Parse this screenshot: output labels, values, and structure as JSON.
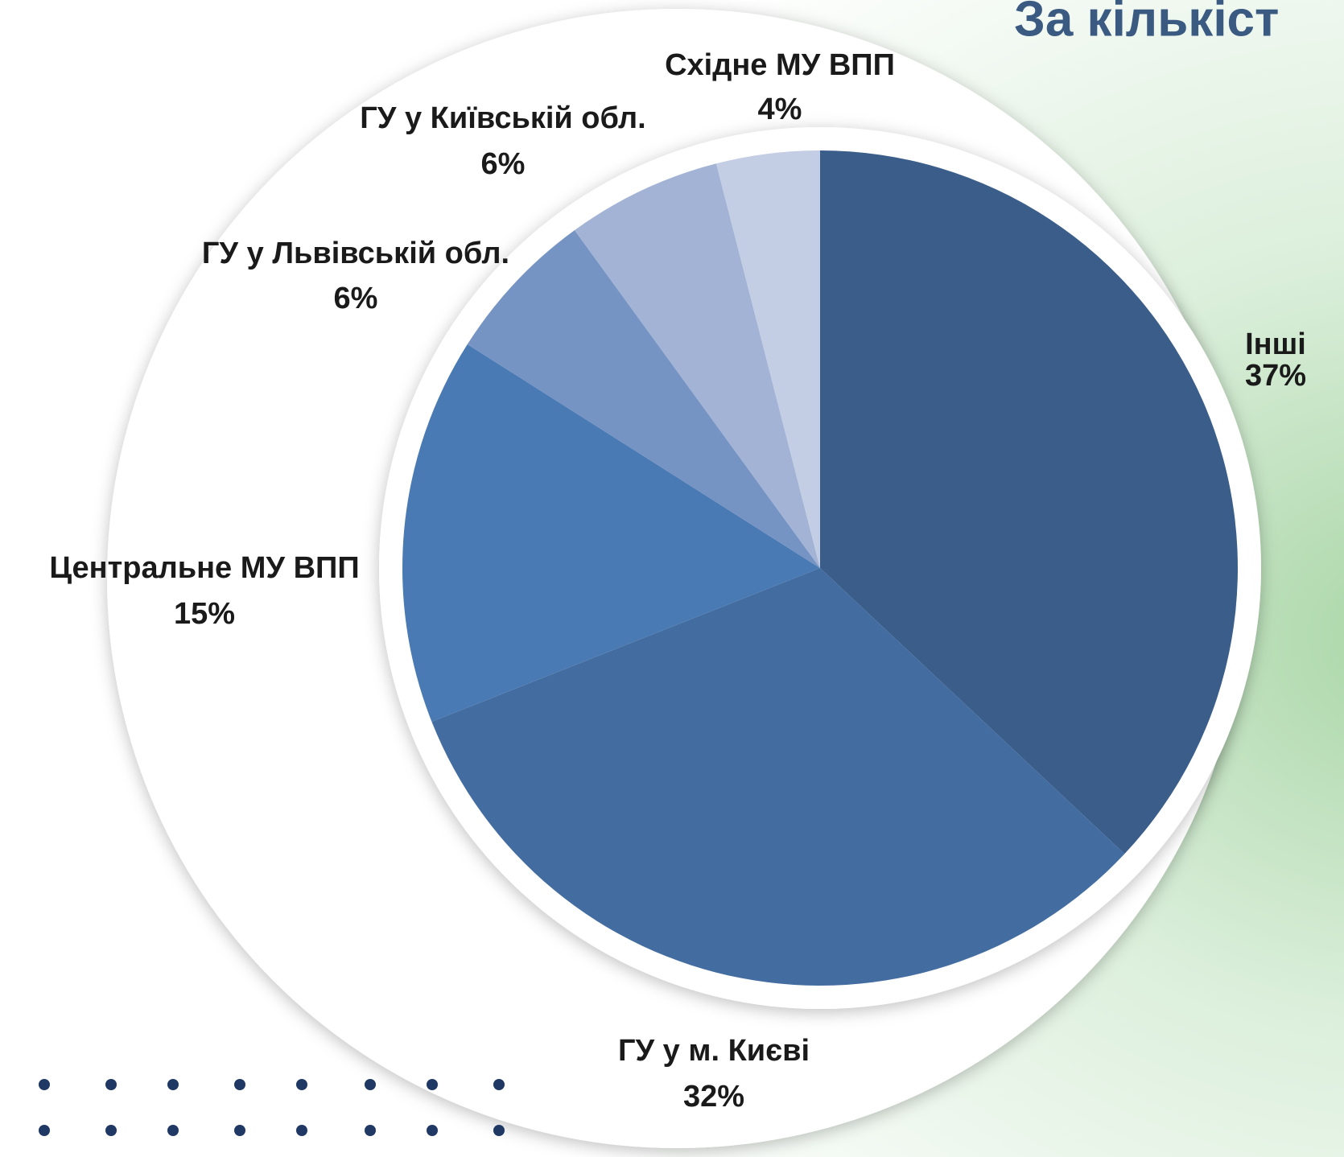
{
  "chart_data": {
    "type": "pie",
    "title": "За кількіст",
    "categories": [
      "Інші",
      "ГУ у м. Києві",
      "Центральне МУ ВПП",
      "ГУ у Львівській обл.",
      "ГУ у Київській обл.",
      "Східне МУ ВПП"
    ],
    "values": [
      37,
      32,
      15,
      6,
      6,
      4
    ],
    "value_labels": [
      "37%",
      "32%",
      "15%",
      "6%",
      "6%",
      "4%"
    ],
    "colors": [
      "#3a5d8a",
      "#436da0",
      "#4a7ab3",
      "#7593c3",
      "#a2b3d5",
      "#c3cde3"
    ]
  }
}
